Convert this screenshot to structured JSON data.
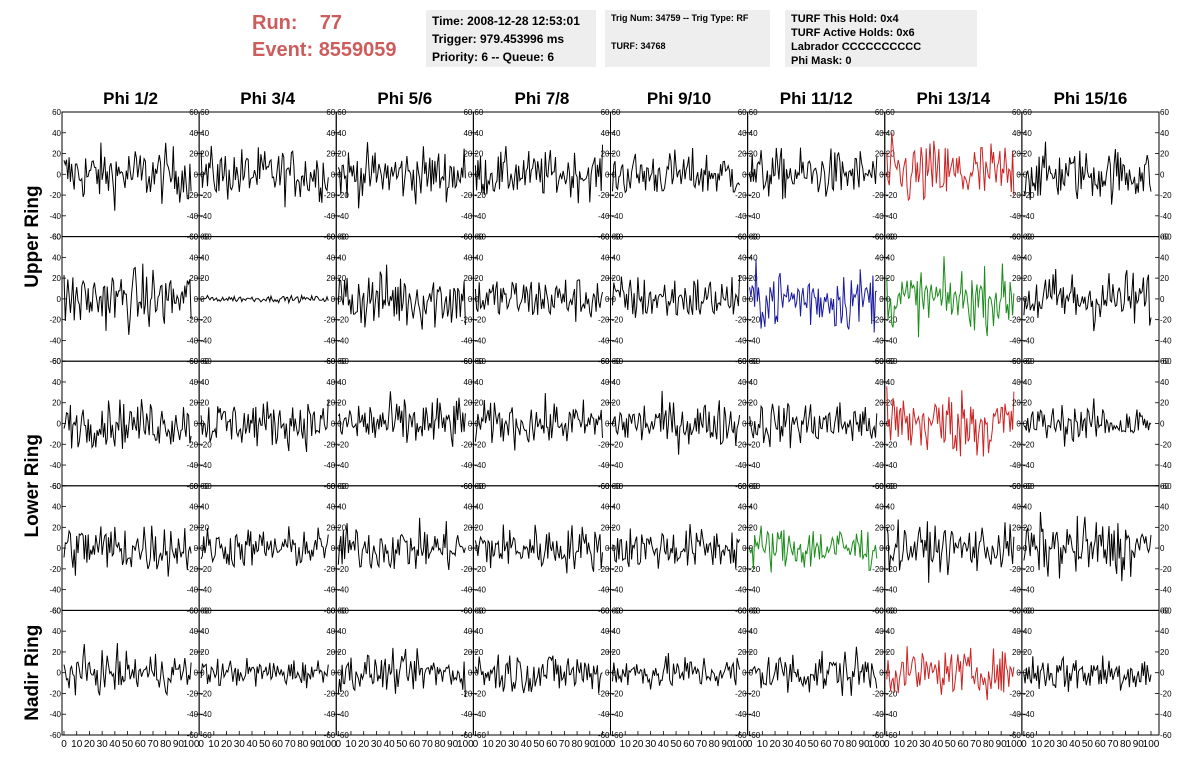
{
  "header": {
    "run_label": "Run:",
    "run_value": "77",
    "event_label": "Event:",
    "event_value": "8559059",
    "time": "Time: 2008-12-28 12:53:01",
    "trigger": "Trigger: 979.453996 ms",
    "priority": "Priority: 6 -- Queue: 6",
    "trig_num": "Trig Num: 34759 -- Trig Type: RF",
    "turf": "TURF: 34768",
    "turf_this_hold": "TURF This Hold: 0x4",
    "turf_active_holds": "TURF Active Holds: 0x6",
    "labrador": "Labrador CCCCCCCCCC",
    "phi_mask": "Phi Mask: 0"
  },
  "chart_data": {
    "type": "line",
    "columns": [
      "Phi 1/2",
      "Phi 3/4",
      "Phi 5/6",
      "Phi 7/8",
      "Phi 9/10",
      "Phi 11/12",
      "Phi 13/14",
      "Phi 15/16"
    ],
    "ring_labels": [
      "Upper Ring",
      "Lower Ring",
      "Nadir Ring"
    ],
    "rows": 5,
    "ylim": [
      -60,
      60
    ],
    "yticks": [
      -60,
      -40,
      -20,
      0,
      20,
      40,
      60
    ],
    "xlim": [
      0,
      100
    ],
    "xticks": [
      0,
      10,
      20,
      30,
      40,
      50,
      60,
      70,
      80,
      90,
      100
    ],
    "colors": {
      "normal": "#000000",
      "red": "#cc2222",
      "blue": "#1a1aa0",
      "green": "#1a8c1a"
    },
    "panel_amplitude": [
      [
        18,
        17,
        17,
        15,
        15,
        16,
        22,
        17
      ],
      [
        20,
        2,
        20,
        15,
        15,
        20,
        19,
        19
      ],
      [
        15,
        15,
        17,
        14,
        15,
        15,
        22,
        12
      ],
      [
        17,
        13,
        15,
        15,
        14,
        15,
        15,
        19
      ],
      [
        13,
        9,
        12,
        14,
        11,
        15,
        14,
        13
      ]
    ],
    "panel_color": [
      [
        "normal",
        "normal",
        "normal",
        "normal",
        "normal",
        "normal",
        "red",
        "normal"
      ],
      [
        "normal",
        "normal",
        "normal",
        "normal",
        "normal",
        "blue",
        "green",
        "normal"
      ],
      [
        "normal",
        "normal",
        "normal",
        "normal",
        "normal",
        "normal",
        "red",
        "normal"
      ],
      [
        "normal",
        "normal",
        "normal",
        "normal",
        "normal",
        "green",
        "normal",
        "normal"
      ],
      [
        "normal",
        "normal",
        "normal",
        "normal",
        "normal",
        "normal",
        "red",
        "normal"
      ]
    ]
  }
}
